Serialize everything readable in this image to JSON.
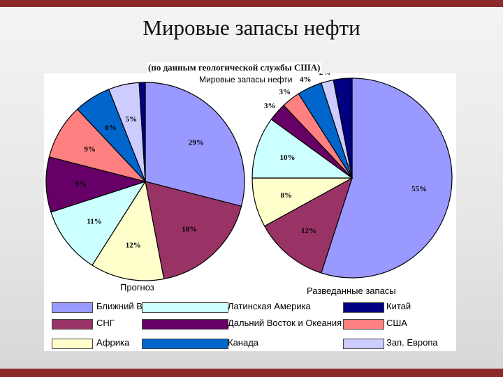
{
  "page": {
    "title": "Мировые запасы нефти",
    "subtitle": "(по данным геологической службы США)"
  },
  "colors": {
    "Ближний Восток": "#9999ff",
    "СНГ": "#993366",
    "Африка": "#ffffcc",
    "Латинская Америка": "#ccffff",
    "Дальний Восток и Океания": "#660066",
    "США": "#ff8080",
    "Канада": "#0066cc",
    "Зап. Европа": "#ccccff",
    "Китай": "#000080"
  },
  "chart_data": [
    {
      "type": "pie",
      "caption": "Прогноз",
      "slices": [
        {
          "label": "Ближний Восток",
          "value": 29,
          "text": "29%"
        },
        {
          "label": "СНГ",
          "value": 18,
          "text": "18%"
        },
        {
          "label": "Африка",
          "value": 12,
          "text": "12%"
        },
        {
          "label": "Латинская Америка",
          "value": 11,
          "text": "11%"
        },
        {
          "label": "Дальний Восток и Океания",
          "value": 9,
          "text": "9%"
        },
        {
          "label": "США",
          "value": 9,
          "text": "9%"
        },
        {
          "label": "Канада",
          "value": 6,
          "text": "6%"
        },
        {
          "label": "Зап. Европа",
          "value": 5,
          "text": "5%"
        },
        {
          "label": "Китай",
          "value": 1,
          "text": ""
        }
      ]
    },
    {
      "type": "pie",
      "title": "Мировые запасы нефти",
      "caption": "Разведанные запасы",
      "slices": [
        {
          "label": "Ближний Восток",
          "value": 55,
          "text": "55%"
        },
        {
          "label": "СНГ",
          "value": 12,
          "text": "12%"
        },
        {
          "label": "Африка",
          "value": 8,
          "text": "8%"
        },
        {
          "label": "Латинская Америка",
          "value": 10,
          "text": "10%"
        },
        {
          "label": "Дальний Восток и Океания",
          "value": 3,
          "text": "3%"
        },
        {
          "label": "США",
          "value": 3,
          "text": "3%"
        },
        {
          "label": "Канада",
          "value": 4,
          "text": "4%"
        },
        {
          "label": "Зап. Европа",
          "value": 2,
          "text": "2%"
        },
        {
          "label": "Китай",
          "value": 3,
          "text": ""
        }
      ]
    }
  ],
  "legend": [
    "Ближний Восток",
    "Латинская Америка",
    "Китай",
    "СНГ",
    "Дальний Восток и Океания",
    "США",
    "Африка",
    "Канада",
    "Зап. Европа"
  ]
}
